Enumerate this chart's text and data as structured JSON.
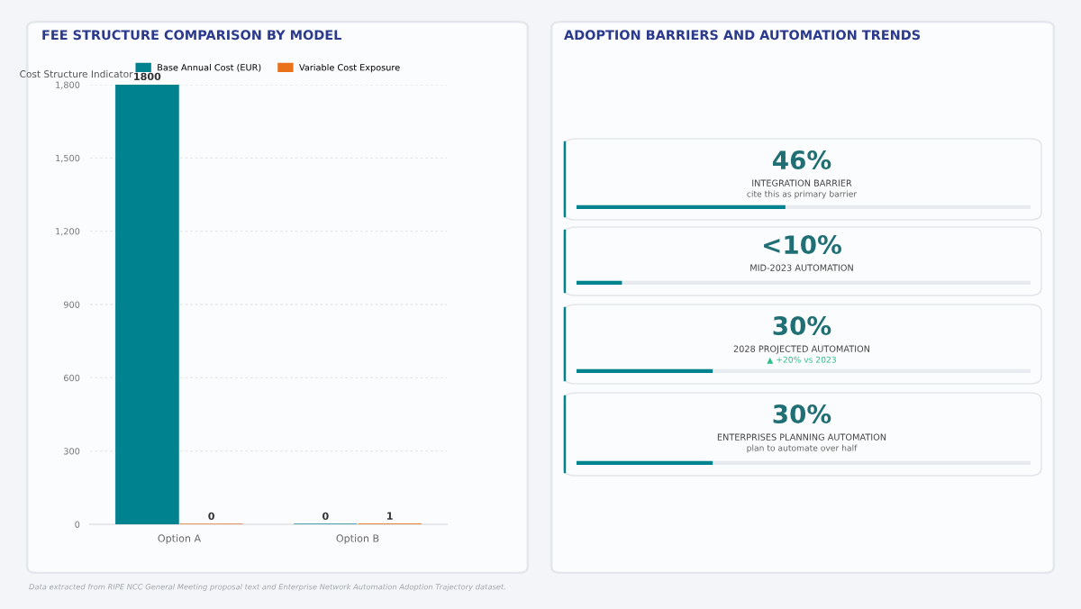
{
  "chart_data": [
    {
      "type": "bar",
      "title": "FEE STRUCTURE COMPARISON BY MODEL",
      "ylabel": "Cost Structure Indicator",
      "categories": [
        "Option A",
        "Option B"
      ],
      "series": [
        {
          "name": "Base Annual Cost (EUR)",
          "color": "#00838f",
          "values": [
            1800,
            0
          ]
        },
        {
          "name": "Variable Cost Exposure",
          "color": "#e8711a",
          "values": [
            0,
            1
          ]
        }
      ],
      "ylim": [
        0,
        1800
      ],
      "yticks": [
        0,
        {
          "value": 300,
          "label": "300"
        },
        {
          "value": 600,
          "label": "600"
        },
        {
          "value": 900,
          "label": "900"
        },
        {
          "value": 1200,
          "label": "1,200"
        },
        {
          "value": 1500,
          "label": "1,500"
        },
        {
          "value": 1800,
          "label": "1,800"
        }
      ],
      "grid": "y",
      "legend": "top",
      "data_labels": true,
      "annotations": [
        "Data extracted from RIPE NCC General Meeting proposal text and Enterprise Network Automation Adoption Trajectory dataset."
      ]
    },
    {
      "type": "other",
      "title": "ADOPTION BARRIERS AND AUTOMATION TRENDS",
      "categories": [
        "INTEGRATION BARRIER",
        "MID-2023 AUTOMATION",
        "2028 PROJECTED AUTOMATION",
        "ENTERPRISES PLANNING AUTOMATION"
      ],
      "values": [
        46,
        10,
        30,
        30
      ],
      "value_labels": [
        "46%",
        "<10%",
        "30%",
        "30%"
      ],
      "annotations": [
        {
          "text": "cite this as primary barrier",
          "x": "INTEGRATION BARRIER"
        },
        {
          "text": "▲ +20% vs 2023",
          "x": "2028 PROJECTED AUTOMATION"
        },
        {
          "text": "plan to automate over half",
          "x": "ENTERPRISES PLANNING AUTOMATION"
        }
      ]
    }
  ]
}
